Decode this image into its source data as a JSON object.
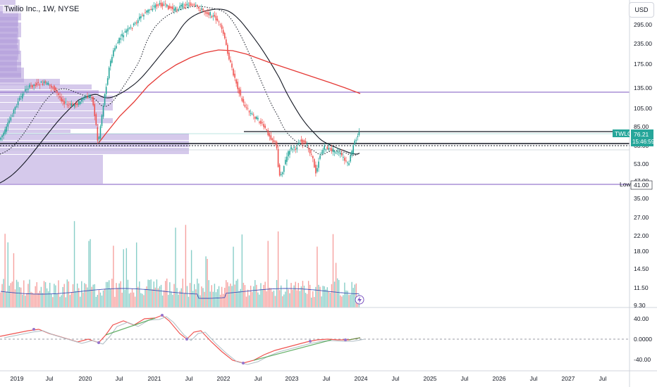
{
  "header": {
    "title": "Twilio Inc., 1W, NYSE",
    "currency": "USD"
  },
  "price_axis": {
    "ticks": [
      "295.00",
      "235.00",
      "175.00",
      "135.00",
      "105.00",
      "85.00",
      "63.00",
      "53.00",
      "47.00",
      "35.00",
      "27.00",
      "22.00",
      "18.00",
      "14.50",
      "11.50",
      "9.30"
    ]
  },
  "oscillator_axis": {
    "ticks": [
      "40.00",
      "0.0000",
      "-40.00"
    ]
  },
  "time_axis": {
    "labels": [
      "2019",
      "Jul",
      "2020",
      "Jul",
      "2021",
      "Jul",
      "2022",
      "Jul",
      "2023",
      "Jul",
      "2024",
      "Jul",
      "2025",
      "Jul",
      "2026",
      "Jul",
      "2027",
      "Jul"
    ]
  },
  "price_tag": {
    "symbol": "TWLO",
    "price": "76.21",
    "countdown": "15:46:59"
  },
  "low_tag": {
    "label": "Low",
    "value": "41.00"
  },
  "colors": {
    "up": "#26a69a",
    "down": "#ef5350",
    "ma_red": "#e53935",
    "ma_black": "#131722",
    "level": "#7e57c2",
    "tag": "#26a69a"
  },
  "chart_data": {
    "type": "candlestick",
    "title": "Twilio Inc., 1W, NYSE",
    "y_scale": "log",
    "ylim": [
      30,
      440
    ],
    "x": [
      "2019",
      "2019.5",
      "2020",
      "2020.5",
      "2021",
      "2021.5",
      "2022",
      "2022.5",
      "2023",
      "2023.5",
      "2024"
    ],
    "close": [
      110,
      100,
      100,
      220,
      360,
      350,
      260,
      95,
      58,
      60,
      76.21
    ],
    "last_price": 76.21,
    "low": 41.0,
    "horizontal_levels": [
      125,
      76,
      65
    ],
    "indicators": [
      "moving-average-red",
      "moving-average-black",
      "moving-average-dotted",
      "volume-profile",
      "volume",
      "oscillator"
    ],
    "volume_axis_ticks": [
      "35.00",
      "27.00",
      "22.00",
      "18.00",
      "14.50",
      "11.50",
      "9.30"
    ],
    "oscillator_ticks": [
      "40.00",
      "0.0000",
      "-40.00"
    ]
  }
}
